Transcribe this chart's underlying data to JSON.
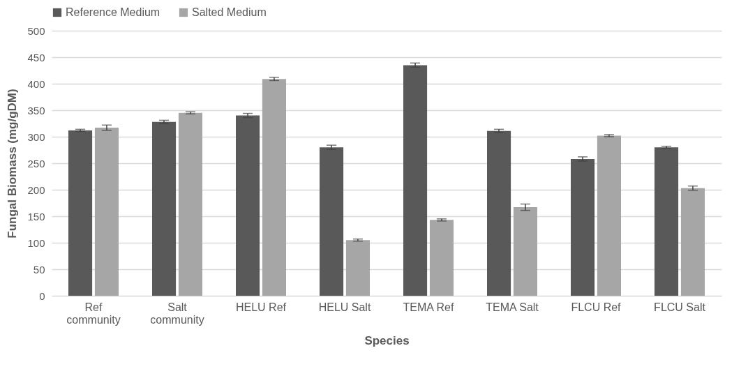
{
  "chart_data": {
    "type": "bar",
    "xlabel": "Species",
    "ylabel": "Fungal Biomass (mg/gDM)",
    "categories": [
      "Ref community",
      "Salt community",
      "HELU Ref",
      "HELU Salt",
      "TEMA Ref",
      "TEMA Salt",
      "FLCU Ref",
      "FLCU Salt"
    ],
    "series": [
      {
        "name": "Reference Medium",
        "color": "#595959",
        "values": [
          312,
          328,
          340,
          280,
          435,
          311,
          258,
          280
        ],
        "errors": [
          2,
          3,
          4,
          4,
          4,
          3,
          4,
          2
        ]
      },
      {
        "name": "Salted Medium",
        "color": "#a6a6a6",
        "values": [
          317,
          345,
          409,
          105,
          143,
          167,
          302,
          203
        ],
        "errors": [
          5,
          2,
          3,
          2,
          2,
          6,
          2,
          4
        ]
      }
    ],
    "ylim": [
      0,
      500
    ],
    "yticks": [
      0,
      50,
      100,
      150,
      200,
      250,
      300,
      350,
      400,
      450,
      500
    ],
    "grid": "y",
    "legend": "top"
  }
}
